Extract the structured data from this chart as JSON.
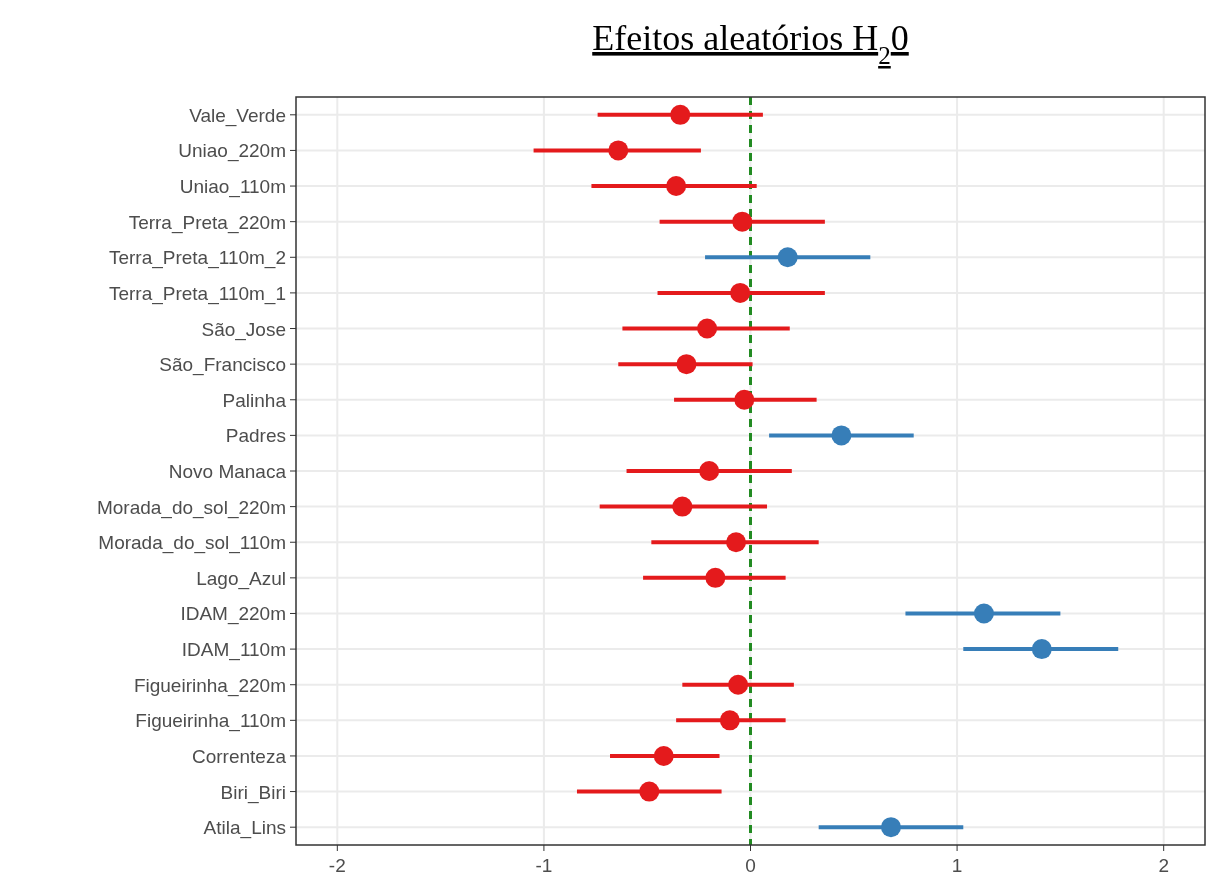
{
  "chart_data": {
    "type": "scatter",
    "orientation": "horizontal",
    "title": "Efeitos aleatórios H$_{2}$0",
    "categories": [
      "Vale_Verde",
      "Uniao_220m",
      "Uniao_110m",
      "Terra_Preta_220m",
      "Terra_Preta_110m_2",
      "Terra_Preta_110m_1",
      "São_Jose",
      "São_Francisco",
      "Palinha",
      "Padres",
      "Novo Manaca",
      "Morada_do_sol_220m",
      "Morada_do_sol_110m",
      "Lago_Azul",
      "IDAM_220m",
      "IDAM_110m",
      "Figueirinha_220m",
      "Figueirinha_110m",
      "Correnteza",
      "Biri_Biri",
      "Atila_Lins"
    ],
    "values": [
      -0.34,
      -0.64,
      -0.36,
      -0.04,
      0.18,
      -0.05,
      -0.21,
      -0.31,
      -0.03,
      0.44,
      -0.2,
      -0.33,
      -0.07,
      -0.17,
      1.13,
      1.41,
      -0.06,
      -0.1,
      -0.42,
      -0.49,
      0.68
    ],
    "errors": [
      [
        -0.74,
        0.06
      ],
      [
        -1.05,
        -0.24
      ],
      [
        -0.77,
        0.03
      ],
      [
        -0.44,
        0.36
      ],
      [
        -0.22,
        0.58
      ],
      [
        -0.45,
        0.36
      ],
      [
        -0.62,
        0.19
      ],
      [
        -0.64,
        0.01
      ],
      [
        -0.37,
        0.32
      ],
      [
        0.09,
        0.79
      ],
      [
        -0.6,
        0.2
      ],
      [
        -0.73,
        0.08
      ],
      [
        -0.48,
        0.33
      ],
      [
        -0.52,
        0.17
      ],
      [
        0.75,
        1.5
      ],
      [
        1.03,
        1.78
      ],
      [
        -0.33,
        0.21
      ],
      [
        -0.36,
        0.17
      ],
      [
        -0.68,
        -0.15
      ],
      [
        -0.84,
        -0.14
      ],
      [
        0.33,
        1.03
      ]
    ],
    "colors": [
      "#e41a1c",
      "#e41a1c",
      "#e41a1c",
      "#e41a1c",
      "#377eb8",
      "#e41a1c",
      "#e41a1c",
      "#e41a1c",
      "#e41a1c",
      "#377eb8",
      "#e41a1c",
      "#e41a1c",
      "#e41a1c",
      "#e41a1c",
      "#377eb8",
      "#377eb8",
      "#e41a1c",
      "#e41a1c",
      "#e41a1c",
      "#e41a1c",
      "#377eb8"
    ],
    "xlim": [
      -2.2,
      2.2
    ],
    "xticks": [
      -2,
      -1,
      0,
      1,
      2
    ],
    "grid": true,
    "marker": "circle",
    "ref_lines": [
      {
        "axis": "x",
        "value": 0,
        "color": "#228b22",
        "line_style": "dashed"
      }
    ]
  }
}
